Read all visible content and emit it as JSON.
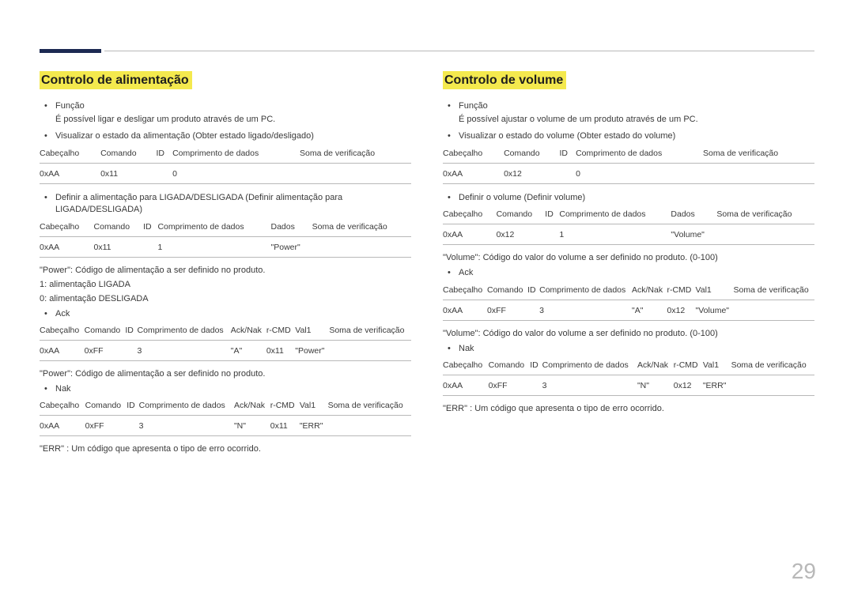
{
  "page_number": "29",
  "left": {
    "title": "Controlo de alimentação",
    "func_label": "Função",
    "func_text": "É possível ligar e desligar um produto através de um PC.",
    "view_state": "Visualizar o estado da alimentação (Obter estado ligado/desligado)",
    "t1_head": [
      "Cabeçalho",
      "Comando",
      "ID",
      "Comprimento de dados",
      "Soma de verificação"
    ],
    "t1_row": [
      "0xAA",
      "0x11",
      "",
      "0",
      ""
    ],
    "set_state": "Definir a alimentação para LIGADA/DESLIGADA (Definir alimentação para LIGADA/DESLIGADA)",
    "t2_head": [
      "Cabeçalho",
      "Comando",
      "ID",
      "Comprimento de dados",
      "Dados",
      "Soma de verificação"
    ],
    "t2_row": [
      "0xAA",
      "0x11",
      "",
      "1",
      "\"Power\"",
      ""
    ],
    "power_def": "\"Power\": Código de alimentação a ser definido no produto.",
    "power_on": "1: alimentação LIGADA",
    "power_off": "0: alimentação DESLIGADA",
    "ack_label": "Ack",
    "t3_head": [
      "Cabeçalho",
      "Comando",
      "ID",
      "Comprimento de dados",
      "Ack/Nak",
      "r-CMD",
      "Val1",
      "Soma de verificação"
    ],
    "t3_row": [
      "0xAA",
      "0xFF",
      "",
      "3",
      "\"A\"",
      "0x11",
      "\"Power\"",
      ""
    ],
    "power_def2": "\"Power\": Código de alimentação a ser definido no produto.",
    "nak_label": "Nak",
    "t4_head": [
      "Cabeçalho",
      "Comando",
      "ID",
      "Comprimento de dados",
      "Ack/Nak",
      "r-CMD",
      "Val1",
      "Soma de verificação"
    ],
    "t4_row": [
      "0xAA",
      "0xFF",
      "",
      "3",
      "\"N\"",
      "0x11",
      "\"ERR\"",
      ""
    ],
    "err_note": "\"ERR\" : Um código que apresenta o tipo de erro ocorrido."
  },
  "right": {
    "title": "Controlo de volume",
    "func_label": "Função",
    "func_text": "É possível ajustar o volume de um produto através de um PC.",
    "view_state": "Visualizar o estado do volume (Obter estado do volume)",
    "t1_head": [
      "Cabeçalho",
      "Comando",
      "ID",
      "Comprimento de dados",
      "Soma de verificação"
    ],
    "t1_row": [
      "0xAA",
      "0x12",
      "",
      "0",
      ""
    ],
    "set_state": "Definir o volume (Definir volume)",
    "t2_head": [
      "Cabeçalho",
      "Comando",
      "ID",
      "Comprimento de dados",
      "Dados",
      "Soma de verificação"
    ],
    "t2_row": [
      "0xAA",
      "0x12",
      "",
      "1",
      "\"Volume\"",
      ""
    ],
    "vol_def": "\"Volume\": Código do valor do volume a ser definido no produto. (0-100)",
    "ack_label": "Ack",
    "t3_head": [
      "Cabeçalho",
      "Comando",
      "ID",
      "Comprimento de dados",
      "Ack/Nak",
      "r-CMD",
      "Val1",
      "Soma de verificação"
    ],
    "t3_row": [
      "0xAA",
      "0xFF",
      "",
      "3",
      "\"A\"",
      "0x12",
      "\"Volume\"",
      ""
    ],
    "vol_def2": "\"Volume\": Código do valor do volume a ser definido no produto. (0-100)",
    "nak_label": "Nak",
    "t4_head": [
      "Cabeçalho",
      "Comando",
      "ID",
      "Comprimento de dados",
      "Ack/Nak",
      "r-CMD",
      "Val1",
      "Soma de verificação"
    ],
    "t4_row": [
      "0xAA",
      "0xFF",
      "",
      "3",
      "\"N\"",
      "0x12",
      "\"ERR\"",
      ""
    ],
    "err_note": "\"ERR\" : Um código que apresenta o tipo de erro ocorrido."
  }
}
